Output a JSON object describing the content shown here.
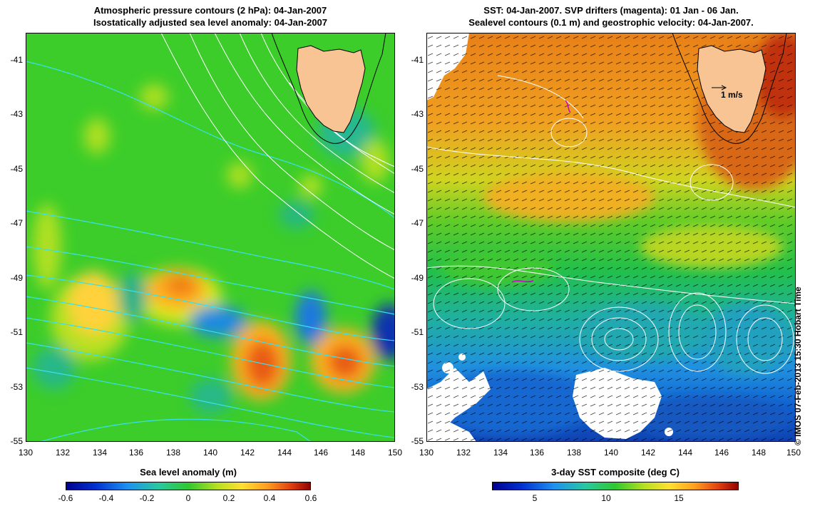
{
  "left_panel": {
    "title_line1": "Atmospheric pressure contours (2 hPa): 04-Jan-2007",
    "title_line2": "Isostatically adjusted sea level anomaly: 04-Jan-2007",
    "y_ticks": [
      "-41",
      "-43",
      "-45",
      "-47",
      "-49",
      "-51",
      "-53",
      "-55"
    ],
    "x_ticks": [
      "130",
      "132",
      "134",
      "136",
      "138",
      "140",
      "142",
      "144",
      "146",
      "148",
      "150"
    ],
    "colorbar_label": "Sea level anomaly (m)",
    "colorbar_ticks": [
      "-0.6",
      "-0.4",
      "-0.2",
      "0",
      "0.2",
      "0.4",
      "0.6"
    ]
  },
  "right_panel": {
    "title_line1": "SST: 04-Jan-2007. SVP drifters (magenta): 01 Jan - 06 Jan.",
    "title_line2": "Sealevel contours (0.1 m) and geostrophic velocity: 04-Jan-2007.",
    "y_ticks": [
      "-41",
      "-43",
      "-45",
      "-47",
      "-49",
      "-51",
      "-53",
      "-55"
    ],
    "x_ticks": [
      "130",
      "132",
      "134",
      "136",
      "138",
      "140",
      "142",
      "144",
      "146",
      "148",
      "150"
    ],
    "velocity_scale_label": "1 m/s",
    "colorbar_label": "3-day SST composite (deg C)",
    "colorbar_ticks": [
      "5",
      "10",
      "15"
    ]
  },
  "credit": "© IMOS 07-Feb-2013 15:30 Hobart Time",
  "colors": {
    "land": "#f9c494",
    "ocean_mid": "#22c832",
    "cloud_mask": "#ffffff",
    "drifter": "#cc00cc"
  }
}
